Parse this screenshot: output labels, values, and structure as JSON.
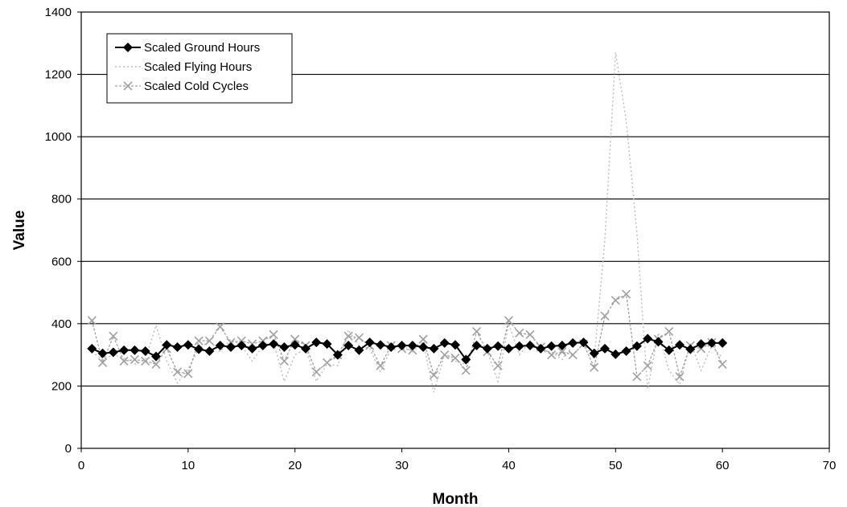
{
  "chart_data": {
    "type": "line",
    "xlabel": "Month",
    "ylabel": "Value",
    "xlim": [
      0,
      70
    ],
    "ylim": [
      0,
      1400
    ],
    "x_ticks": [
      0,
      10,
      20,
      30,
      40,
      50,
      60,
      70
    ],
    "y_ticks": [
      0,
      200,
      400,
      600,
      800,
      1000,
      1200,
      1400
    ],
    "grid": "horizontal",
    "legend_position": "top-left",
    "x": [
      1,
      2,
      3,
      4,
      5,
      6,
      7,
      8,
      9,
      10,
      11,
      12,
      13,
      14,
      15,
      16,
      17,
      18,
      19,
      20,
      21,
      22,
      23,
      24,
      25,
      26,
      27,
      28,
      29,
      30,
      31,
      32,
      33,
      34,
      35,
      36,
      37,
      38,
      39,
      40,
      41,
      42,
      43,
      44,
      45,
      46,
      47,
      48,
      49,
      50,
      51,
      52,
      53,
      54,
      55,
      56,
      57,
      58,
      59,
      60
    ],
    "series": [
      {
        "name": "Scaled Ground Hours",
        "color": "#000000",
        "marker": "diamond",
        "values": [
          320,
          305,
          308,
          315,
          315,
          312,
          295,
          332,
          325,
          332,
          318,
          312,
          330,
          325,
          330,
          320,
          330,
          335,
          325,
          332,
          320,
          340,
          335,
          300,
          330,
          315,
          340,
          332,
          325,
          330,
          330,
          325,
          320,
          338,
          332,
          285,
          330,
          320,
          328,
          320,
          328,
          330,
          320,
          328,
          330,
          338,
          340,
          305,
          320,
          302,
          312,
          328,
          352,
          342,
          315,
          332,
          318,
          335,
          338,
          338
        ]
      },
      {
        "name": "Scaled Flying Hours",
        "color": "#bbbbbb",
        "marker": "none",
        "values": [
          310,
          285,
          300,
          290,
          270,
          285,
          395,
          280,
          210,
          255,
          320,
          345,
          310,
          350,
          330,
          280,
          330,
          340,
          215,
          300,
          320,
          215,
          270,
          265,
          380,
          330,
          320,
          245,
          320,
          335,
          310,
          340,
          180,
          300,
          280,
          270,
          340,
          310,
          215,
          400,
          300,
          345,
          310,
          310,
          285,
          330,
          345,
          285,
          670,
          1270,
          1050,
          690,
          190,
          370,
          250,
          205,
          340,
          250,
          330,
          290
        ]
      },
      {
        "name": "Scaled Cold Cycles",
        "color": "#a0a0a0",
        "marker": "x",
        "values": [
          410,
          275,
          360,
          280,
          285,
          280,
          270,
          320,
          245,
          240,
          345,
          345,
          390,
          340,
          345,
          335,
          345,
          365,
          280,
          350,
          330,
          245,
          275,
          300,
          360,
          355,
          330,
          265,
          330,
          320,
          315,
          350,
          235,
          300,
          290,
          250,
          375,
          310,
          265,
          410,
          370,
          365,
          325,
          300,
          310,
          300,
          335,
          260,
          425,
          475,
          495,
          230,
          265,
          350,
          375,
          230,
          330,
          320,
          340,
          270
        ]
      }
    ]
  }
}
